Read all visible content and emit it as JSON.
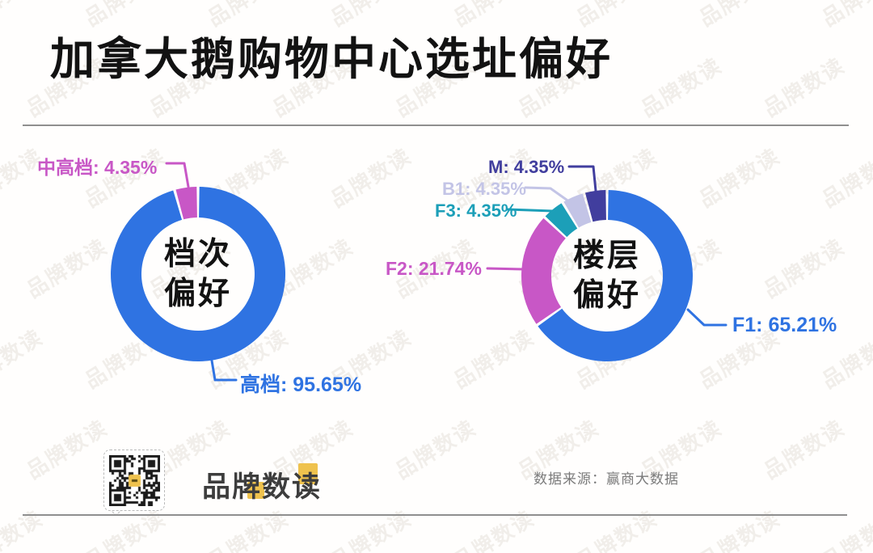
{
  "title": "加拿大鹅购物中心选址偏好",
  "watermark": {
    "text": "品牌数读"
  },
  "chart_data": [
    {
      "type": "pie",
      "subtype": "donut",
      "title": "档次偏好",
      "center_lines": [
        "档次",
        "偏好"
      ],
      "legend_position": "callout",
      "series": [
        {
          "key": "high-grade",
          "name": "高档",
          "value": 95.65,
          "label": "高档: 95.65%",
          "color": "#2F73E2"
        },
        {
          "key": "mid-high-grade",
          "name": "中高档",
          "value": 4.35,
          "label": "中高档: 4.35%",
          "color": "#C857C6"
        }
      ]
    },
    {
      "type": "pie",
      "subtype": "donut",
      "title": "楼层偏好",
      "center_lines": [
        "楼层",
        "偏好"
      ],
      "legend_position": "callout",
      "series": [
        {
          "key": "f1",
          "name": "F1",
          "value": 65.21,
          "label": "F1: 65.21%",
          "color": "#2F73E2"
        },
        {
          "key": "f2",
          "name": "F2",
          "value": 21.74,
          "label": "F2: 21.74%",
          "color": "#C857C6"
        },
        {
          "key": "f3",
          "name": "F3",
          "value": 4.35,
          "label": "F3: 4.35%",
          "color": "#1C9FB8"
        },
        {
          "key": "b1",
          "name": "B1",
          "value": 4.35,
          "label": "B1: 4.35%",
          "color": "#C3C4E6"
        },
        {
          "key": "m",
          "name": "M",
          "value": 4.35,
          "label": "M: 4.35%",
          "color": "#413E9E"
        }
      ]
    }
  ],
  "footer": {
    "logo": "品牌数读",
    "source": "数据来源：赢商大数据",
    "qr_icon": "qr-code",
    "accent_color": "#EFC24D"
  },
  "colors": {
    "title": "#121212",
    "center_text": "#121212",
    "divider": "#8f8f8f",
    "logo_text": "#3d3d3d",
    "source_text": "#7a7a7a"
  }
}
